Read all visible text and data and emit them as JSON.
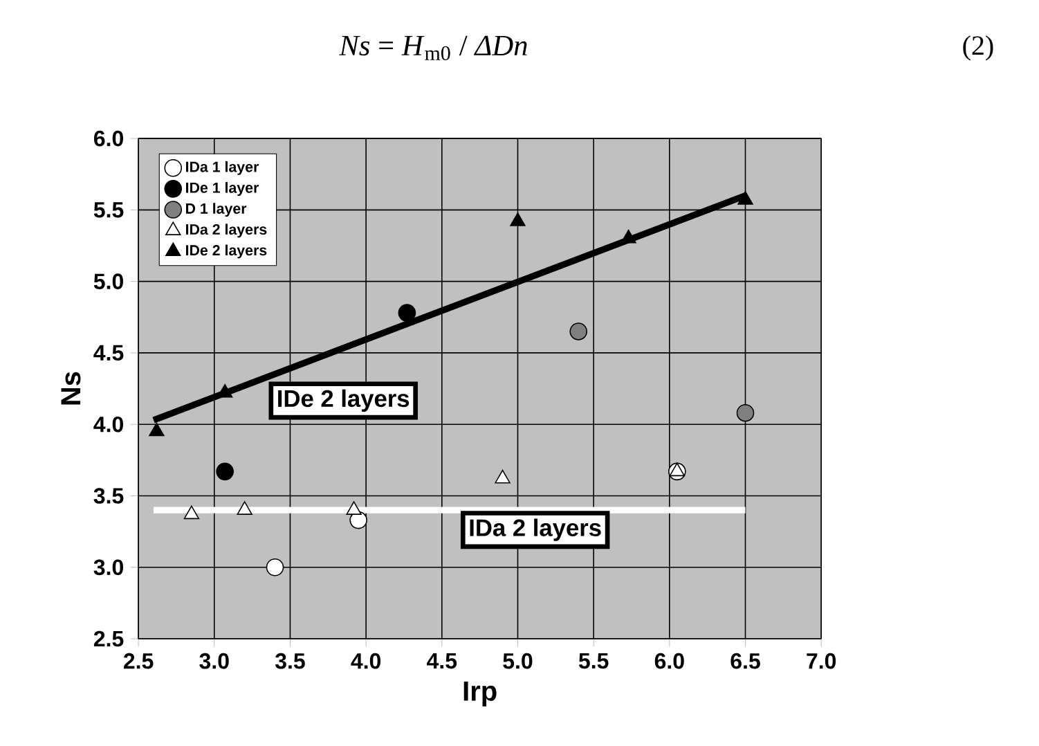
{
  "chart_data": {
    "type": "scatter",
    "title": "*Ns* = *H*$_{m0}$ / *ΔDn*",
    "xlabel": "Irp",
    "ylabel": "Ns",
    "xlim": [
      2.5,
      7.0
    ],
    "ylim": [
      2.5,
      6.0
    ],
    "xticks": [
      {
        "value": 2.5,
        "label": "2.5"
      },
      {
        "value": 3,
        "label": "3.0"
      },
      {
        "value": 3.5,
        "label": "3.5"
      },
      {
        "value": 4,
        "label": "4.0"
      },
      {
        "value": 4.5,
        "label": "4.5"
      },
      {
        "value": 5,
        "label": "5.0"
      },
      {
        "value": 5.5,
        "label": "5.5"
      },
      {
        "value": 6,
        "label": "6.0"
      },
      {
        "value": 6.5,
        "label": "6.5"
      },
      {
        "value": 7,
        "label": "7.0"
      }
    ],
    "yticks": [
      {
        "value": 2.5,
        "label": "2.5"
      },
      {
        "value": 3,
        "label": "3.0"
      },
      {
        "value": 3.5,
        "label": "3.5"
      },
      {
        "value": 4,
        "label": "4.0"
      },
      {
        "value": 4.5,
        "label": "4.5"
      },
      {
        "value": 5,
        "label": "5.0"
      },
      {
        "value": 5.5,
        "label": "5.5"
      },
      {
        "value": 6,
        "label": "6.0"
      }
    ],
    "grid": true,
    "legend": "top left",
    "series": [
      {
        "name": "IDa 1 layer",
        "color": "#ffffff",
        "marker": "circle",
        "x": [
          3.4,
          3.95,
          6.05
        ],
        "values": [
          3.0,
          3.33,
          3.67
        ]
      },
      {
        "name": "IDe 1 layer",
        "color": "#000000",
        "marker": "circle",
        "x": [
          3.07,
          4.27
        ],
        "values": [
          3.67,
          4.78
        ]
      },
      {
        "name": "D 1 layer",
        "color": "#808080",
        "marker": "circle",
        "x": [
          5.4,
          6.5
        ],
        "values": [
          4.65,
          4.08
        ]
      },
      {
        "name": "IDa 2 layers",
        "color": "#ffffff",
        "marker": "triangle",
        "x": [
          2.85,
          3.2,
          3.92,
          4.9,
          6.05
        ],
        "values": [
          3.37,
          3.4,
          3.4,
          3.62,
          3.67
        ]
      },
      {
        "name": "IDe 2 layers",
        "color": "#000000",
        "marker": "triangle",
        "x": [
          2.62,
          3.07,
          5.0,
          5.73,
          6.5
        ],
        "values": [
          3.95,
          4.22,
          5.42,
          5.3,
          5.57
        ]
      },
      {
        "type": "line",
        "color": "#000000",
        "marker": "none",
        "x": [
          2.6,
          6.5
        ],
        "values": [
          4.03,
          5.6
        ]
      },
      {
        "type": "line",
        "color": "#ffffff",
        "marker": "none",
        "x": [
          2.6,
          6.5
        ],
        "values": [
          3.4,
          3.4
        ]
      }
    ],
    "annotations": [
      "IDe 2 layers",
      "IDa 2 layers",
      "(2)"
    ]
  }
}
